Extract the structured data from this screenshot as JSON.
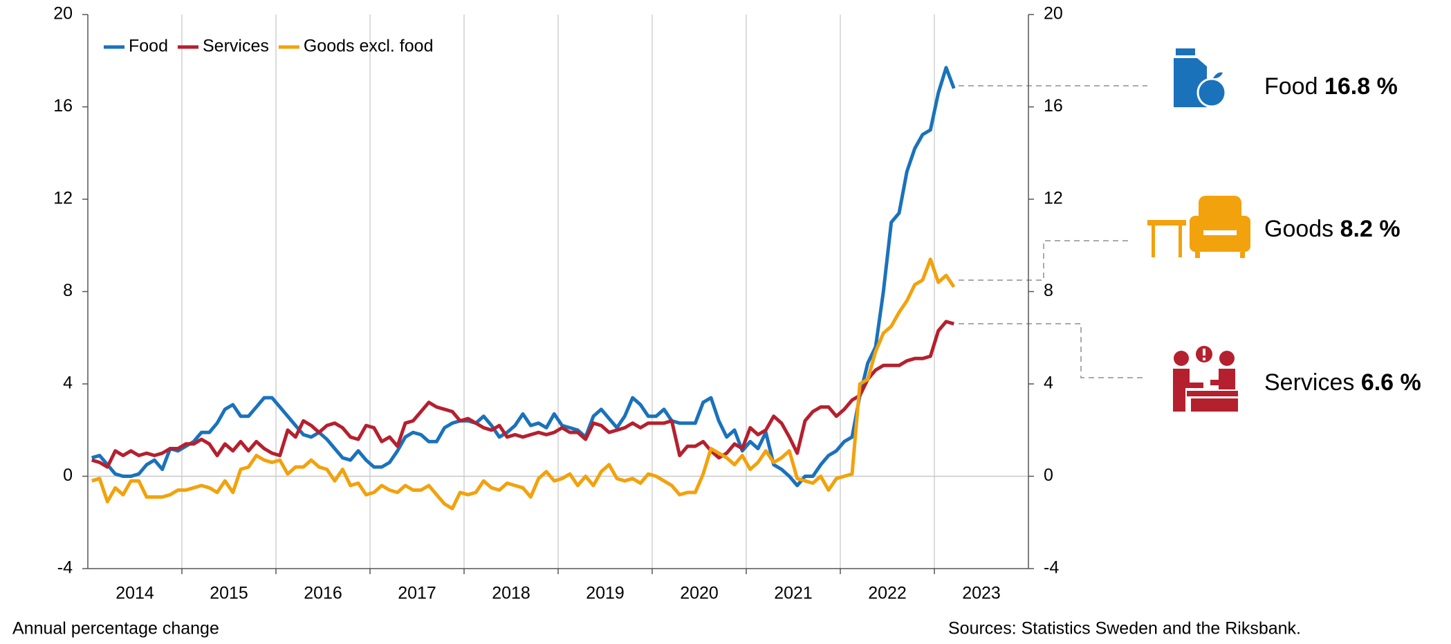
{
  "chart_data": {
    "type": "line",
    "x": [
      2014.042,
      2014.125,
      2014.208,
      2014.292,
      2014.375,
      2014.458,
      2014.542,
      2014.625,
      2014.708,
      2014.792,
      2014.875,
      2014.958,
      2015.042,
      2015.125,
      2015.208,
      2015.292,
      2015.375,
      2015.458,
      2015.542,
      2015.625,
      2015.708,
      2015.792,
      2015.875,
      2015.958,
      2016.042,
      2016.125,
      2016.208,
      2016.292,
      2016.375,
      2016.458,
      2016.542,
      2016.625,
      2016.708,
      2016.792,
      2016.875,
      2016.958,
      2017.042,
      2017.125,
      2017.208,
      2017.292,
      2017.375,
      2017.458,
      2017.542,
      2017.625,
      2017.708,
      2017.792,
      2017.875,
      2017.958,
      2018.042,
      2018.125,
      2018.208,
      2018.292,
      2018.375,
      2018.458,
      2018.542,
      2018.625,
      2018.708,
      2018.792,
      2018.875,
      2018.958,
      2019.042,
      2019.125,
      2019.208,
      2019.292,
      2019.375,
      2019.458,
      2019.542,
      2019.625,
      2019.708,
      2019.792,
      2019.875,
      2019.958,
      2020.042,
      2020.125,
      2020.208,
      2020.292,
      2020.375,
      2020.458,
      2020.542,
      2020.625,
      2020.708,
      2020.792,
      2020.875,
      2020.958,
      2021.042,
      2021.125,
      2021.208,
      2021.292,
      2021.375,
      2021.458,
      2021.542,
      2021.625,
      2021.708,
      2021.792,
      2021.875,
      2021.958,
      2022.042,
      2022.125,
      2022.208,
      2022.292,
      2022.375,
      2022.458,
      2022.542,
      2022.625,
      2022.708,
      2022.792,
      2022.875,
      2022.958,
      2023.042,
      2023.125,
      2023.208
    ],
    "series": [
      {
        "name": "Food",
        "color": "#1a72bb",
        "values": [
          0.8,
          0.9,
          0.5,
          0.1,
          0.0,
          0.0,
          0.1,
          0.5,
          0.7,
          0.3,
          1.2,
          1.1,
          1.3,
          1.5,
          1.9,
          1.9,
          2.3,
          2.9,
          3.1,
          2.6,
          2.6,
          3.0,
          3.4,
          3.4,
          3.0,
          2.6,
          2.2,
          1.8,
          1.7,
          1.9,
          1.6,
          1.2,
          0.8,
          0.7,
          1.1,
          0.7,
          0.4,
          0.4,
          0.6,
          1.1,
          1.7,
          1.9,
          1.8,
          1.5,
          1.5,
          2.1,
          2.3,
          2.4,
          2.4,
          2.3,
          2.6,
          2.2,
          1.7,
          1.9,
          2.2,
          2.7,
          2.2,
          2.3,
          2.1,
          2.7,
          2.2,
          2.1,
          2.0,
          1.7,
          2.6,
          2.9,
          2.5,
          2.1,
          2.6,
          3.4,
          3.1,
          2.6,
          2.6,
          2.9,
          2.4,
          2.3,
          2.3,
          2.3,
          3.2,
          3.4,
          2.4,
          1.7,
          2.0,
          1.1,
          1.5,
          1.2,
          1.9,
          0.5,
          0.3,
          0.0,
          -0.4,
          0.0,
          0.0,
          0.5,
          0.9,
          1.1,
          1.5,
          1.7,
          3.5,
          4.9,
          5.6,
          8.0,
          11.0,
          11.4,
          13.2,
          14.2,
          14.8,
          15.0,
          16.6,
          17.7,
          16.8
        ]
      },
      {
        "name": "Services",
        "color": "#b5202e",
        "values": [
          0.7,
          0.6,
          0.4,
          1.1,
          0.9,
          1.1,
          0.9,
          1.0,
          0.9,
          1.0,
          1.2,
          1.2,
          1.4,
          1.4,
          1.6,
          1.4,
          0.9,
          1.4,
          1.1,
          1.5,
          1.1,
          1.5,
          1.2,
          1.0,
          0.9,
          2.0,
          1.7,
          2.4,
          2.2,
          1.9,
          2.2,
          2.3,
          2.1,
          1.7,
          1.6,
          2.2,
          2.1,
          1.5,
          1.7,
          1.3,
          2.3,
          2.4,
          2.8,
          3.2,
          3.0,
          2.9,
          2.8,
          2.4,
          2.5,
          2.3,
          2.1,
          2.0,
          2.2,
          1.7,
          1.8,
          1.7,
          1.8,
          1.9,
          1.8,
          1.9,
          2.1,
          1.9,
          1.9,
          1.6,
          2.3,
          2.2,
          1.9,
          2.0,
          2.1,
          2.3,
          2.1,
          2.3,
          2.3,
          2.3,
          2.4,
          0.9,
          1.3,
          1.3,
          1.5,
          1.1,
          0.8,
          1.0,
          1.4,
          1.2,
          2.1,
          1.8,
          2.0,
          2.6,
          2.3,
          1.7,
          1.0,
          2.4,
          2.8,
          3.0,
          3.0,
          2.6,
          2.9,
          3.3,
          3.5,
          4.2,
          4.6,
          4.8,
          4.8,
          4.8,
          5.0,
          5.1,
          5.1,
          5.2,
          6.3,
          6.7,
          6.6
        ]
      },
      {
        "name": "Goods excl. food",
        "color": "#f2a20c",
        "values": [
          -0.2,
          -0.1,
          -1.1,
          -0.5,
          -0.8,
          -0.2,
          -0.2,
          -0.9,
          -0.9,
          -0.9,
          -0.8,
          -0.6,
          -0.6,
          -0.5,
          -0.4,
          -0.5,
          -0.7,
          -0.2,
          -0.7,
          0.3,
          0.4,
          0.9,
          0.7,
          0.6,
          0.7,
          0.1,
          0.4,
          0.4,
          0.7,
          0.4,
          0.3,
          -0.2,
          0.3,
          -0.4,
          -0.3,
          -0.8,
          -0.7,
          -0.4,
          -0.6,
          -0.7,
          -0.4,
          -0.6,
          -0.6,
          -0.4,
          -0.8,
          -1.2,
          -1.4,
          -0.7,
          -0.8,
          -0.7,
          -0.2,
          -0.5,
          -0.6,
          -0.3,
          -0.4,
          -0.5,
          -0.9,
          -0.1,
          0.2,
          -0.2,
          -0.1,
          0.1,
          -0.4,
          0.0,
          -0.4,
          0.2,
          0.5,
          -0.1,
          -0.2,
          -0.1,
          -0.3,
          0.1,
          0.0,
          -0.2,
          -0.4,
          -0.8,
          -0.7,
          -0.7,
          0.1,
          1.2,
          1.0,
          0.8,
          0.5,
          0.9,
          0.3,
          0.6,
          1.1,
          0.6,
          0.8,
          1.1,
          -0.1,
          -0.2,
          -0.3,
          0.0,
          -0.6,
          -0.1,
          0.0,
          0.1,
          4.0,
          4.2,
          5.4,
          6.2,
          6.5,
          7.1,
          7.6,
          8.3,
          8.5,
          9.4,
          8.4,
          8.7,
          8.2
        ]
      }
    ],
    "xlim": [
      2014,
      2024
    ],
    "xticks": [
      2015,
      2016,
      2017,
      2018,
      2019,
      2020,
      2021,
      2022,
      2023
    ],
    "xtick_labels": [
      "2014",
      "2015",
      "2016",
      "2017",
      "2018",
      "2019",
      "2020",
      "2021",
      "2022",
      "2023"
    ],
    "ylim": [
      -4,
      20
    ],
    "yticks": [
      -4,
      0,
      4,
      8,
      12,
      16,
      20
    ],
    "y2lim": [
      -4,
      20
    ],
    "y2ticks": [
      -4,
      0,
      4,
      8,
      12,
      16,
      20
    ],
    "grid": "x",
    "legend": "upper left",
    "y_axis_label": "Annual percentage change",
    "source": "Sources: Statistics Sweden and the Riksbank.",
    "annotations": [
      {
        "label": "Food",
        "value_label": "16.8 %"
      },
      {
        "label": "Goods",
        "value_label": "8.2 %"
      },
      {
        "label": "Services",
        "value_label": "6.6 %"
      }
    ]
  }
}
